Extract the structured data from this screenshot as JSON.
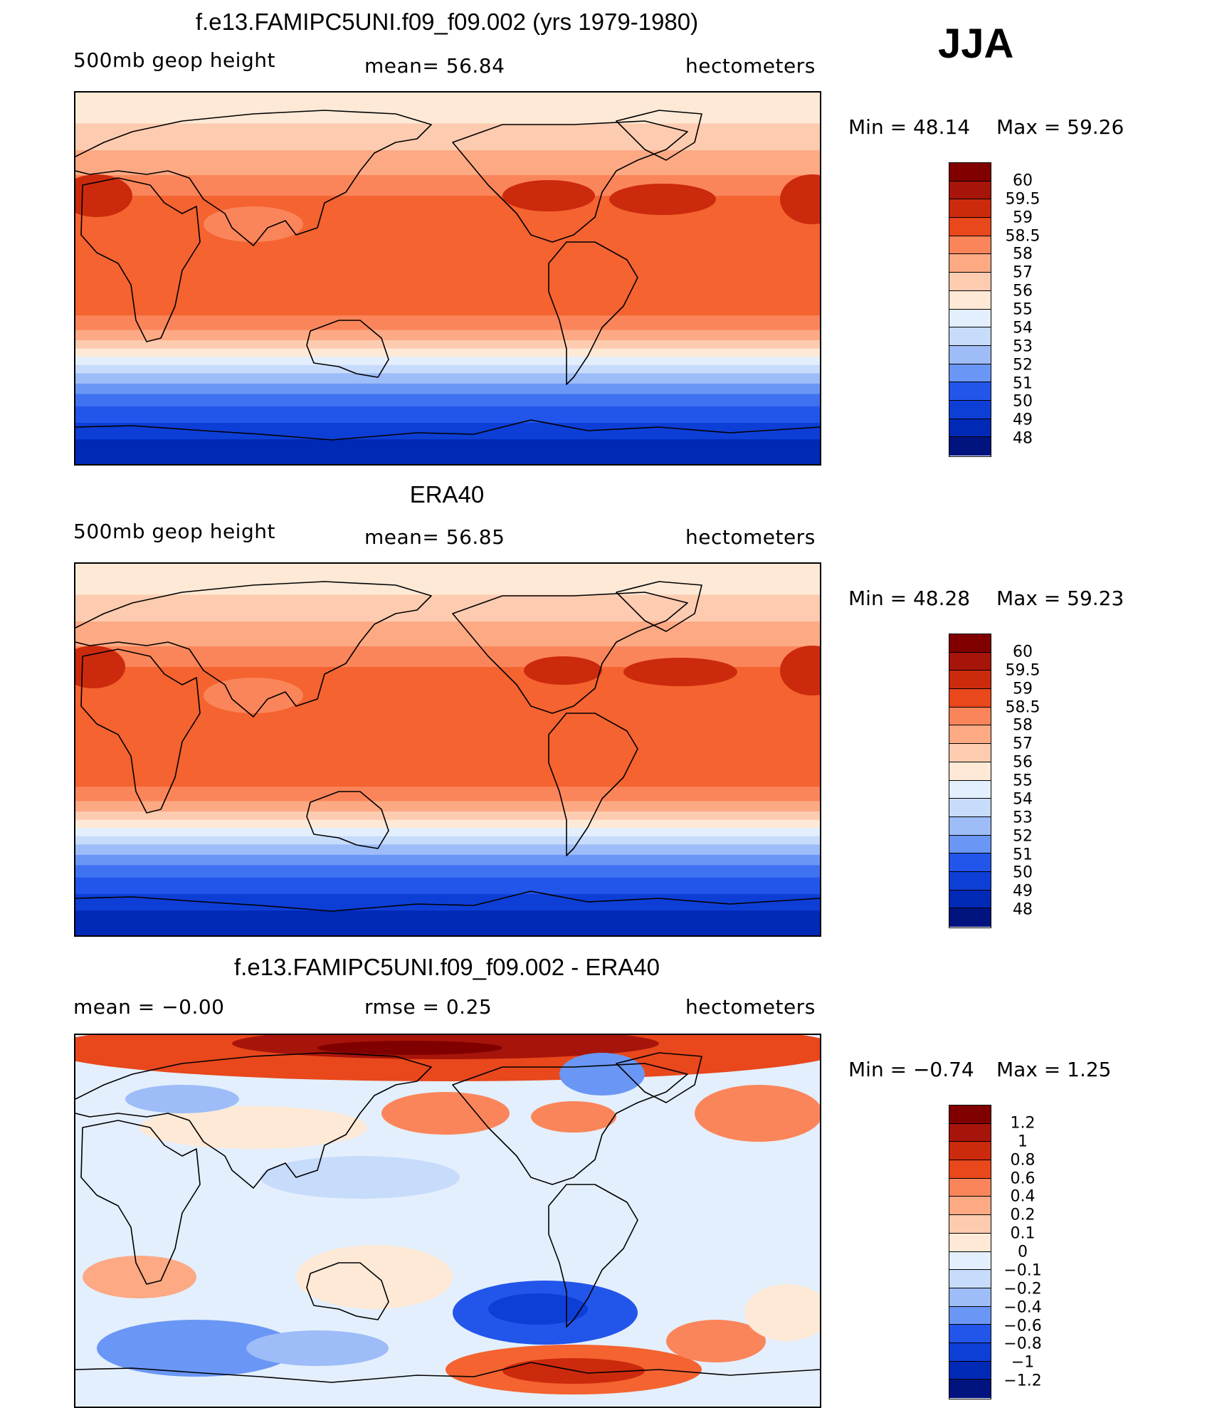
{
  "season": "JJA",
  "colors": {
    "abs": [
      "#00137f",
      "#0029b6",
      "#0d3ed6",
      "#2255ea",
      "#3f72f0",
      "#6a96f5",
      "#9dbcf8",
      "#c7dbfb",
      "#e3effd",
      "#fde9d6",
      "#fdcbb0",
      "#fca984",
      "#fb855a",
      "#f46330",
      "#e9471c",
      "#cc2a0c",
      "#a7150a",
      "#800000"
    ],
    "diff": [
      "#00137f",
      "#0029b6",
      "#0d3ed6",
      "#2255ea",
      "#3f72f0",
      "#6a96f5",
      "#9dbcf8",
      "#c7dbfb",
      "#e3effd",
      "#fde9d6",
      "#fdcbb0",
      "#fca984",
      "#fb855a",
      "#f46330",
      "#e9471c",
      "#cc2a0c",
      "#a7150a",
      "#800000"
    ]
  },
  "chart_data": [
    {
      "type": "heatmap",
      "title": "f.e13.FAMIPC5UNI.f09_f09.002 (yrs 1979-1980)",
      "left_label": "500mb geop height",
      "mean_text": "mean=   56.84",
      "mean": 56.84,
      "units": "hectometers",
      "min_text": "Min  =    48.14",
      "max_text": "Max  =    59.26",
      "min": 48.14,
      "max": 59.26,
      "levels": [
        "60",
        "59.5",
        "59",
        "58.5",
        "58",
        "57",
        "56",
        "55",
        "54",
        "53",
        "52",
        "51",
        "50",
        "49",
        "48"
      ]
    },
    {
      "type": "heatmap",
      "title": "ERA40",
      "left_label": "500mb geop height",
      "mean_text": "mean=   56.85",
      "mean": 56.85,
      "units": "hectometers",
      "min_text": "Min  =    48.28",
      "max_text": "Max  =    59.23",
      "min": 48.28,
      "max": 59.23,
      "levels": [
        "60",
        "59.5",
        "59",
        "58.5",
        "58",
        "57",
        "56",
        "55",
        "54",
        "53",
        "52",
        "51",
        "50",
        "49",
        "48"
      ]
    },
    {
      "type": "heatmap",
      "title": "f.e13.FAMIPC5UNI.f09_f09.002 - ERA40",
      "left_label": "mean  =    −0.00",
      "mean": -0.0,
      "rmse_text": "rmse  =     0.25",
      "rmse": 0.25,
      "units": "hectometers",
      "min_text": "Min  =   −0.74",
      "max_text": "Max  =      1.25",
      "min": -0.74,
      "max": 1.25,
      "levels": [
        "1.2",
        "1",
        "0.8",
        "0.6",
        "0.4",
        "0.2",
        "0.1",
        "0",
        "−0.1",
        "−0.2",
        "−0.4",
        "−0.6",
        "−0.8",
        "−1",
        "−1.2"
      ]
    }
  ]
}
